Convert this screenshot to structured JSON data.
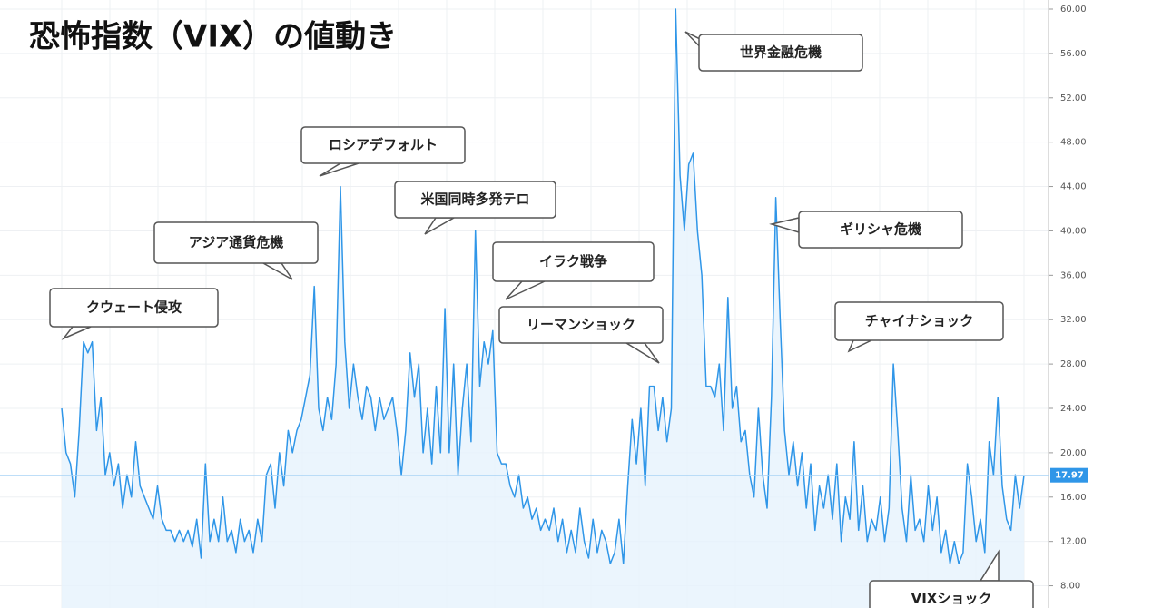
{
  "chart_data": {
    "type": "line",
    "title": "恐怖指数（VIX）の値動き",
    "color": "#2f96e8",
    "grid": true,
    "values": [
      24,
      20,
      19,
      16,
      22,
      30,
      29,
      30,
      22,
      25,
      18,
      20,
      17,
      19,
      15,
      18,
      16,
      21,
      17,
      16,
      15,
      14,
      17,
      14,
      13,
      13,
      12,
      13,
      12,
      13,
      11.5,
      14,
      10.5,
      19,
      12,
      14,
      12,
      16,
      12,
      13,
      11,
      14,
      12,
      13,
      11,
      14,
      12,
      18,
      19,
      15,
      20,
      17,
      22,
      20,
      22,
      23,
      25,
      27,
      35,
      24,
      22,
      25,
      23,
      28,
      44,
      30,
      24,
      28,
      25,
      23,
      26,
      25,
      22,
      25,
      23,
      24,
      25,
      22,
      18,
      22,
      29,
      25,
      28,
      20,
      24,
      19,
      26,
      20,
      33,
      20,
      28,
      18,
      24,
      28,
      21,
      40,
      26,
      30,
      28,
      31,
      20,
      19,
      19,
      17,
      16,
      18,
      15,
      16,
      14,
      15,
      13,
      14,
      13,
      15,
      12,
      14,
      11,
      13,
      11,
      15,
      12,
      10.5,
      14,
      11,
      13,
      12,
      10,
      11,
      14,
      10,
      17,
      23,
      19,
      24,
      17,
      26,
      26,
      22,
      25,
      21,
      24,
      60,
      45,
      40,
      46,
      47,
      40,
      36,
      26,
      26,
      25,
      28,
      22,
      34,
      24,
      26,
      21,
      22,
      18,
      16,
      24,
      18,
      15,
      25,
      43,
      32,
      22,
      18,
      21,
      17,
      20,
      15,
      19,
      13,
      17,
      15,
      18,
      14,
      19,
      12,
      16,
      14,
      21,
      13,
      17,
      12,
      14,
      13,
      16,
      12,
      15,
      28,
      22,
      15,
      12,
      18,
      13,
      14,
      12,
      17,
      13,
      16,
      11,
      13,
      10,
      12,
      10,
      11,
      19,
      16,
      12,
      14,
      11,
      21,
      18,
      25,
      17,
      14,
      13,
      18,
      15,
      17.97
    ],
    "ylim": [
      6,
      60
    ],
    "yticks": [
      {
        "value": 8,
        "label": "8.00"
      },
      {
        "value": 12,
        "label": "12.00"
      },
      {
        "value": 16,
        "label": "16.00"
      },
      {
        "value": 20,
        "label": "20.00"
      },
      {
        "value": 24,
        "label": "24.00"
      },
      {
        "value": 28,
        "label": "28.00"
      },
      {
        "value": 32,
        "label": "32.00"
      },
      {
        "value": 36,
        "label": "36.00"
      },
      {
        "value": 40,
        "label": "40.00"
      },
      {
        "value": 44,
        "label": "44.00"
      },
      {
        "value": 48,
        "label": "48.00"
      },
      {
        "value": 52,
        "label": "52.00"
      },
      {
        "value": 56,
        "label": "56.00"
      },
      {
        "value": 60,
        "label": "60.00"
      }
    ],
    "annotations": [
      "世界金融危機",
      "ロシアデフォルト",
      "米国同時多発テロ",
      "アジア通貨危機",
      "イラク戦争",
      "クウェート侵攻",
      "リーマンショック",
      "ギリシャ危機",
      "チャイナショック",
      "VIXショック"
    ]
  }
}
